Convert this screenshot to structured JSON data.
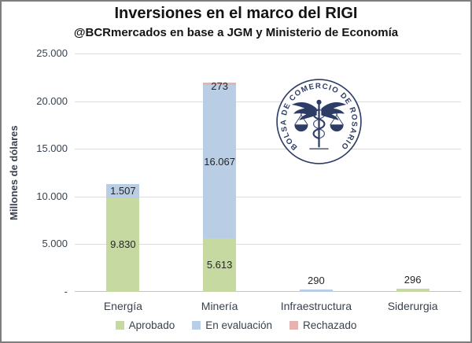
{
  "title": "Inversiones en el marco del RIGI",
  "subtitle": "@BCRmercados en base a JGM y Ministerio de Economía",
  "y_axis": {
    "title": "Millones de dólares",
    "ticks": [
      "25.000",
      "20.000",
      "15.000",
      "10.000",
      "5.000",
      "-"
    ]
  },
  "legend": [
    {
      "label": "Aprobado",
      "color": "#c6d9a0"
    },
    {
      "label": "En evaluación",
      "color": "#b9cde4"
    },
    {
      "label": "Rechazado",
      "color": "#e6b4b0"
    }
  ],
  "logo": {
    "text": "BOLSA DE COMERCIO DE ROSARIO",
    "color": "#2e3d66"
  },
  "chart_data": {
    "type": "bar",
    "stacked": true,
    "title": "Inversiones en el marco del RIGI",
    "xlabel": "",
    "ylabel": "Millones de dólares",
    "ylim": [
      0,
      25000
    ],
    "grid": true,
    "legend_position": "bottom",
    "categories": [
      "Energía",
      "Minería",
      "Infraestructura",
      "Siderurgia"
    ],
    "series": [
      {
        "name": "Aprobado",
        "color": "#c6d9a0",
        "values": [
          9830,
          5613,
          0,
          296
        ],
        "labels": [
          "9.830",
          "5.613",
          "",
          "296"
        ]
      },
      {
        "name": "En evaluación",
        "color": "#b9cde4",
        "values": [
          1507,
          16067,
          290,
          0
        ],
        "labels": [
          "1.507",
          "16.067",
          "290",
          ""
        ]
      },
      {
        "name": "Rechazado",
        "color": "#e6b4b0",
        "values": [
          0,
          273,
          0,
          0
        ],
        "labels": [
          "",
          "273",
          "",
          ""
        ]
      }
    ]
  }
}
